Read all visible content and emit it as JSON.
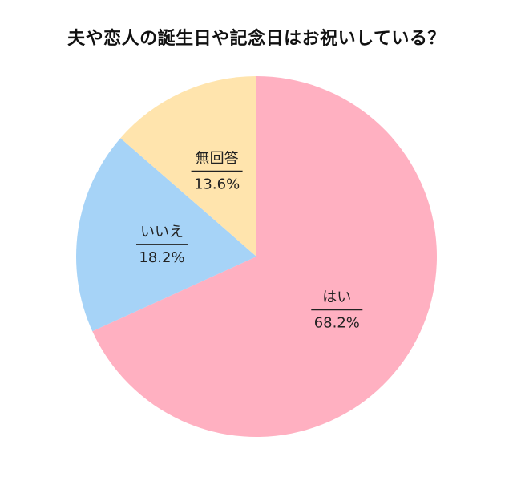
{
  "chart_data": {
    "type": "pie",
    "title": "夫や恋人の誕生日や記念日はお祝いしている？",
    "start": "12 o'clock",
    "direction": "clockwise",
    "slices": [
      {
        "label": "はい",
        "value": 68.2,
        "value_text": "68.2%",
        "color": "#FFB0C1"
      },
      {
        "label": "いいえ",
        "value": 18.2,
        "value_text": "18.2%",
        "color": "#A6D3F7"
      },
      {
        "label": "無回答",
        "value": 13.6,
        "value_text": "13.6%",
        "color": "#FFE4AD"
      }
    ]
  }
}
